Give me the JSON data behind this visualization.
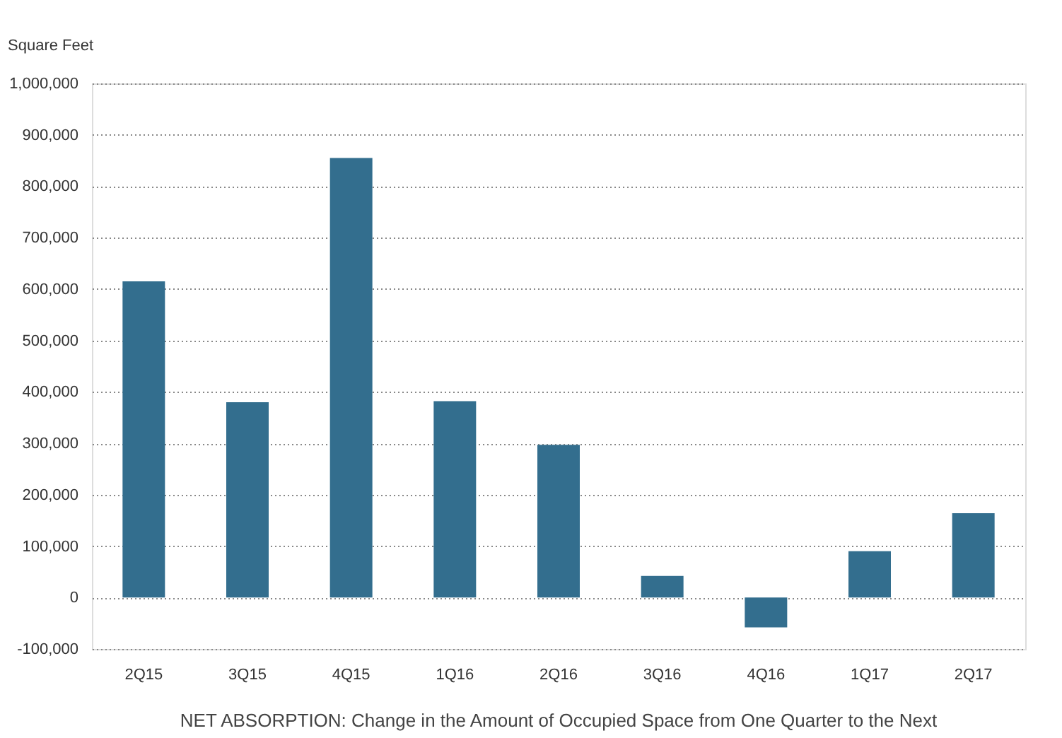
{
  "chart_data": {
    "type": "bar",
    "title": "NET ABSORPTION: Change in the Amount of Occupied Space from One Quarter to the Next",
    "ylabel": "Square Feet",
    "categories": [
      "2Q15",
      "3Q15",
      "4Q15",
      "1Q16",
      "2Q16",
      "3Q16",
      "4Q16",
      "1Q17",
      "2Q17"
    ],
    "values": [
      615000,
      380000,
      855000,
      382000,
      297000,
      42000,
      -58000,
      90000,
      164000
    ],
    "color": "#336e8e",
    "ylim": [
      -100000,
      1000000
    ],
    "yticks": [
      {
        "value": -100000,
        "label": "-100,000"
      },
      0,
      {
        "value": 100000,
        "label": "100,000"
      },
      {
        "value": 200000,
        "label": "200,000"
      },
      {
        "value": 300000,
        "label": "300,000"
      },
      {
        "value": 400000,
        "label": "400,000"
      },
      {
        "value": 500000,
        "label": "500,000"
      },
      {
        "value": 600000,
        "label": "600,000"
      },
      {
        "value": 700000,
        "label": "700,000"
      },
      {
        "value": 800000,
        "label": "800,000"
      },
      {
        "value": 900000,
        "label": "900,000"
      },
      {
        "value": 1000000,
        "label": "1,000,000"
      }
    ],
    "grid": "y"
  }
}
